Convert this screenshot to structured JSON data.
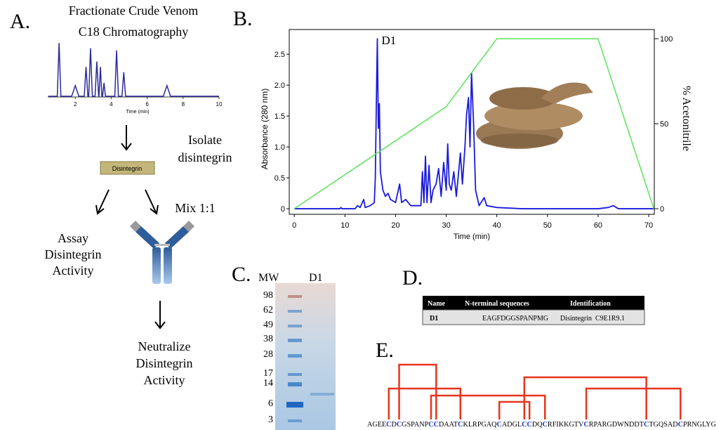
{
  "panels": {
    "a": "A.",
    "b": "B.",
    "c": "C.",
    "d": "D.",
    "e": "E."
  },
  "workflow": {
    "title": [
      "Fractionate Crude Venom",
      "C18 Chromatography"
    ],
    "isolate": [
      "Isolate",
      "disintegrin"
    ],
    "box": "Disintegrin",
    "mix": "Mix 1:1",
    "assay": [
      "Assay",
      "Disintegrin",
      "Activity"
    ],
    "neutralize": [
      "Neutralize",
      "Disintegrin",
      "Activity"
    ]
  },
  "chart_data": [
    {
      "type": "line",
      "x_label": "Time (min)",
      "xlim": [
        0,
        10
      ],
      "xticks": [
        2,
        4,
        6,
        8,
        10
      ],
      "x": [
        0.5,
        1.0,
        1.1,
        1.2,
        1.8,
        2.0,
        2.2,
        2.5,
        2.6,
        2.7,
        2.75,
        2.85,
        2.95,
        3.1,
        3.2,
        3.3,
        3.32,
        3.4,
        3.48,
        3.52,
        3.6,
        3.68,
        4.2,
        4.3,
        4.4,
        4.6,
        4.7,
        4.8,
        6.9,
        7.1,
        7.3,
        10
      ],
      "series": [
        {
          "color": "#2b2b9a",
          "values": [
            0,
            0,
            1.0,
            0,
            0,
            0.2,
            0,
            0,
            0.55,
            0,
            0,
            0.9,
            0,
            0,
            0.65,
            0,
            0,
            0.55,
            0,
            0,
            0.25,
            0,
            0,
            0.86,
            0,
            0,
            0.45,
            0,
            0,
            0.2,
            0,
            0
          ]
        }
      ]
    },
    {
      "type": "line",
      "x_label": "Time (min)",
      "y_label": "Absorbance (280 nm)",
      "y2_label": "% Acetonitrile",
      "xlim": [
        -1,
        71.1
      ],
      "xticks": [
        0,
        10,
        20,
        30,
        40,
        50,
        60,
        70
      ],
      "ylim": [
        -0.09,
        2.9
      ],
      "yticks": [
        0,
        0.5,
        {
          "value": 1,
          "label": "1.0"
        },
        1.5,
        {
          "value": 2,
          "label": "2.0"
        },
        2.5
      ],
      "y2lim": [
        -3.3,
        105.4
      ],
      "y2ticks": [
        0,
        50,
        100
      ],
      "annotation": "D1",
      "series": [
        {
          "color": "#1a1adb",
          "x": [
            0,
            9,
            9.2,
            9.4,
            12,
            12.5,
            13,
            13.7,
            14,
            15,
            15.8,
            16,
            16.2,
            16.4,
            16.6,
            16.8,
            17,
            17.5,
            18,
            18.5,
            19,
            20,
            20.8,
            21.2,
            22,
            22.5,
            23,
            25,
            25.3,
            25.6,
            25.9,
            26.2,
            26.6,
            27,
            27.4,
            28,
            28.5,
            29,
            29.5,
            30,
            30.3,
            30.6,
            31,
            31.5,
            32,
            32.8,
            33.2,
            33.7,
            34,
            34.4,
            34.7,
            35,
            35.4,
            35.8,
            36.5,
            37.5,
            38,
            40,
            45,
            55,
            60,
            62,
            63,
            64,
            71
          ],
          "values": [
            0,
            0,
            0.02,
            0,
            0,
            0.05,
            0.02,
            0.15,
            0.02,
            0.05,
            0.1,
            0.5,
            1.7,
            2.75,
            1.3,
            1.7,
            0.6,
            0.3,
            0.2,
            0.25,
            0.15,
            0.1,
            0.4,
            0.1,
            0.15,
            0.1,
            0.05,
            0.05,
            0.6,
            0.1,
            0.85,
            0.1,
            0.7,
            0.1,
            0.3,
            0.4,
            0.65,
            0.2,
            0.75,
            0.3,
            1.05,
            0.4,
            0.3,
            0.6,
            0.2,
            0.9,
            0.4,
            1.0,
            1.5,
            1.8,
            1.0,
            2.2,
            1.4,
            0.3,
            0.05,
            0.18,
            0.05,
            0.02,
            0,
            0,
            0,
            0.02,
            0.05,
            0,
            0
          ]
        },
        {
          "color": "#5be35b",
          "axis": "y2",
          "x": [
            0,
            30,
            40,
            60,
            71
          ],
          "values": [
            0,
            60,
            100,
            100,
            0
          ]
        }
      ]
    }
  ],
  "gel": {
    "mw_label": "MW",
    "lane_label": "D1",
    "markers": [
      "98",
      "62",
      "49",
      "38",
      "28",
      "17",
      "14",
      "6",
      "3"
    ]
  },
  "table": {
    "header": [
      "Name",
      "N-terminal sequences",
      "Identification"
    ],
    "rows": [
      [
        "D1",
        "EAGFDGGSPANPMG",
        "Disintegrin  C9E1R9.1"
      ]
    ]
  },
  "sequence": "AGEECDCGSPANPCCDAATCKLRPGAQCADGLCCDQCRFIKKGTVCRPARGDWNDDTCTGQSADCPRNGLYG"
}
